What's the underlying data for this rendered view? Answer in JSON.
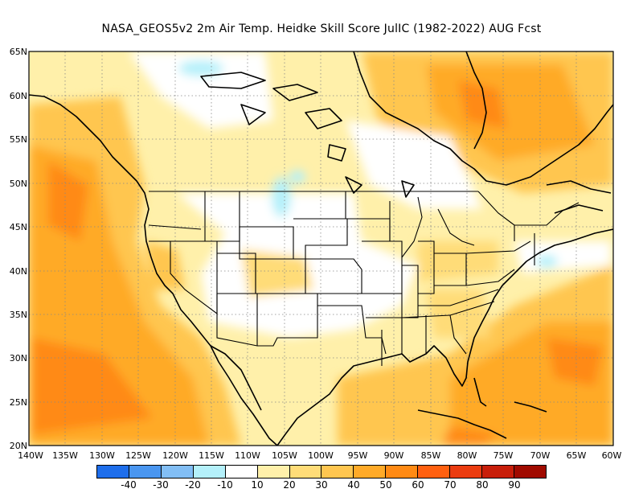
{
  "title": "NASA_GEOS5v2  2m Air Temp. Heidke Skill Score JulIC (1982-2022) AUG Fcst",
  "map": {
    "lat_labels": [
      "65N",
      "60N",
      "55N",
      "50N",
      "45N",
      "40N",
      "35N",
      "30N",
      "25N",
      "20N"
    ],
    "lon_labels": [
      "140W",
      "135W",
      "130W",
      "125W",
      "120W",
      "115W",
      "110W",
      "105W",
      "100W",
      "95W",
      "90W",
      "85W",
      "80W",
      "75W",
      "70W",
      "65W",
      "60W"
    ],
    "lat_range": [
      20,
      65
    ],
    "lon_range": [
      -140,
      -60
    ]
  },
  "colorbar": {
    "colors": [
      "#1e6eeb",
      "#4a96f0",
      "#82bef5",
      "#b4f0fa",
      "#ffffff",
      "#fff0aa",
      "#ffdc78",
      "#ffc650",
      "#ffaa28",
      "#ff8a14",
      "#ff6010",
      "#eb3c10",
      "#c81e0a",
      "#a00a00"
    ],
    "tick_labels": [
      "-40",
      "-30",
      "-20",
      "-10",
      "10",
      "20",
      "30",
      "40",
      "50",
      "60",
      "70",
      "80",
      "90"
    ]
  }
}
